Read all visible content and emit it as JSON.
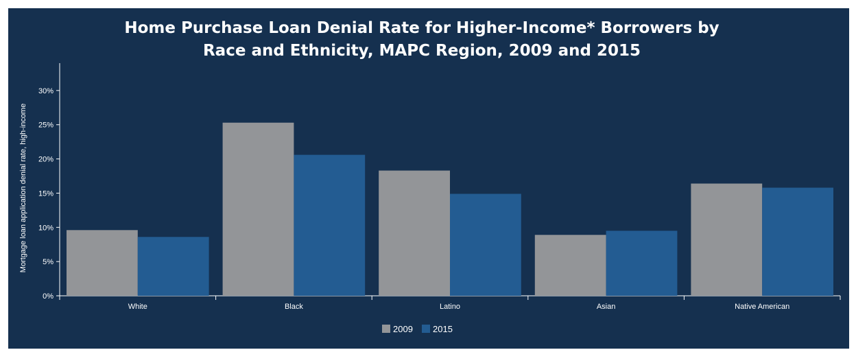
{
  "chart_data": {
    "type": "bar",
    "title_lines": [
      "Home Purchase Loan Denial Rate for Higher-Income* Borrowers by",
      "Race and Ethnicity, MAPC Region, 2009 and 2015"
    ],
    "ylabel": "Mortgage loan application denial rate, high-income",
    "xlabel": "",
    "categories": [
      "White",
      "Black",
      "Latino",
      "Asian",
      "Native American"
    ],
    "series": [
      {
        "name": "2009",
        "color": "#939598",
        "values": [
          9.6,
          25.3,
          18.3,
          8.9,
          16.4
        ]
      },
      {
        "name": "2015",
        "color": "#235c92",
        "values": [
          8.6,
          20.6,
          14.9,
          9.5,
          15.8
        ]
      }
    ],
    "ylim": [
      0,
      34
    ],
    "yticks": [
      0,
      5,
      10,
      15,
      20,
      25,
      30
    ],
    "ytick_labels": [
      "0%",
      "5%",
      "10%",
      "15%",
      "20%",
      "25%",
      "30%"
    ],
    "grid": false,
    "legend_position": "bottom-center",
    "background_color": "#15304f"
  }
}
